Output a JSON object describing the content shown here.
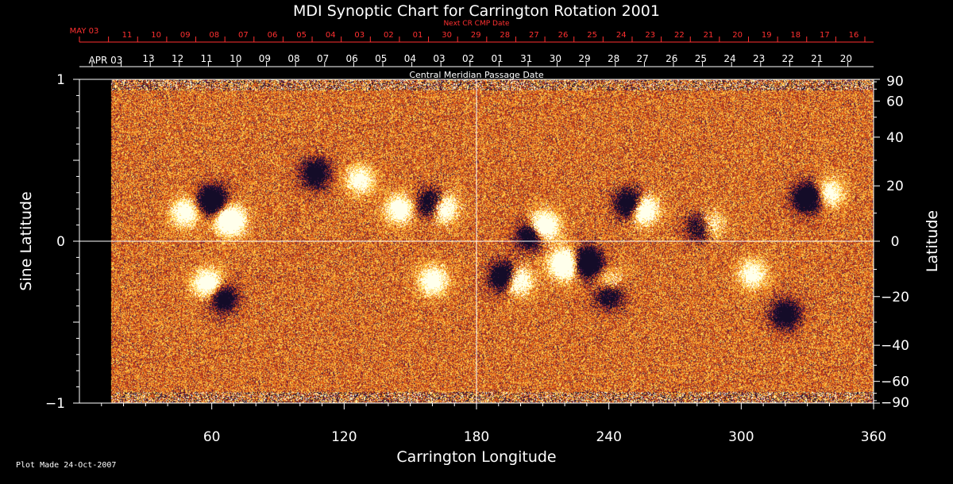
{
  "chart_data": {
    "type": "heatmap",
    "title": "MDI Synoptic Chart for Carrington Rotation 2001",
    "xlabel": "Carrington Longitude",
    "ylabel_left": "Sine Latitude",
    "ylabel_right": "Latitude",
    "xlim": [
      0,
      360
    ],
    "ylim": [
      -1,
      1
    ],
    "x_ticks": [
      60,
      120,
      180,
      240,
      300,
      360
    ],
    "y_ticks_left": [
      {
        "value": 1,
        "label": "1"
      },
      {
        "value": 0,
        "label": "0"
      },
      {
        "value": -1,
        "label": "−1"
      }
    ],
    "y_ticks_right_deg": [
      90,
      60,
      40,
      20,
      0,
      -20,
      -40,
      -60,
      -90
    ],
    "y_tick_labels_right": [
      "90",
      "60",
      "40",
      "20",
      "0",
      "−20",
      "−40",
      "−60",
      "−90"
    ],
    "top_axis_next": {
      "label": "Next CR CMP Date",
      "start_label": "MAY 03",
      "labels": [
        "11",
        "10",
        "09",
        "08",
        "07",
        "06",
        "05",
        "04",
        "03",
        "02",
        "01",
        "30",
        "29",
        "28",
        "27",
        "26",
        "25",
        "24",
        "23",
        "22",
        "21",
        "20",
        "19",
        "18",
        "17",
        "16"
      ]
    },
    "top_axis_cmp": {
      "label": "Central Meridian Passage Date",
      "start_label": "APR 03",
      "labels": [
        "13",
        "12",
        "11",
        "10",
        "09",
        "08",
        "07",
        "06",
        "05",
        "04",
        "03",
        "02",
        "01",
        "31",
        "30",
        "29",
        "28",
        "27",
        "26",
        "25",
        "24",
        "23",
        "22",
        "21",
        "20"
      ]
    },
    "footer": "Plot Made 24-Oct-2007",
    "crosshair": {
      "longitude": 180,
      "sine_latitude": 0
    },
    "colors": {
      "background": "#000000",
      "field_base": "#d9531c",
      "positive": "#ffffff",
      "negative": "#1a1030",
      "axes": "#ffffff",
      "top_axis_text": "#ff3030"
    },
    "active_regions": [
      {
        "lon": 68,
        "sinlat": 0.13,
        "polarity": "positive",
        "strength": 1.0
      },
      {
        "lon": 60,
        "sinlat": 0.25,
        "polarity": "negative",
        "strength": 0.9
      },
      {
        "lon": 48,
        "sinlat": 0.18,
        "polarity": "positive",
        "strength": 0.6
      },
      {
        "lon": 107,
        "sinlat": 0.42,
        "polarity": "negative",
        "strength": 0.6
      },
      {
        "lon": 127,
        "sinlat": 0.38,
        "polarity": "positive",
        "strength": 0.5
      },
      {
        "lon": 160,
        "sinlat": 0.23,
        "polarity": "negative",
        "strength": 1.0
      },
      {
        "lon": 164,
        "sinlat": 0.21,
        "polarity": "positive",
        "strength": 1.0
      },
      {
        "lon": 145,
        "sinlat": 0.2,
        "polarity": "positive",
        "strength": 0.6
      },
      {
        "lon": 210,
        "sinlat": 0.09,
        "polarity": "positive",
        "strength": 1.0
      },
      {
        "lon": 205,
        "sinlat": 0.04,
        "polarity": "negative",
        "strength": 0.8
      },
      {
        "lon": 220,
        "sinlat": -0.14,
        "polarity": "positive",
        "strength": 1.0
      },
      {
        "lon": 230,
        "sinlat": -0.13,
        "polarity": "negative",
        "strength": 1.0
      },
      {
        "lon": 240,
        "sinlat": -0.26,
        "polarity": "positive",
        "strength": 0.5
      },
      {
        "lon": 250,
        "sinlat": 0.23,
        "polarity": "negative",
        "strength": 1.0
      },
      {
        "lon": 255,
        "sinlat": 0.2,
        "polarity": "positive",
        "strength": 1.0
      },
      {
        "lon": 282,
        "sinlat": 0.09,
        "polarity": "negative",
        "strength": 0.8
      },
      {
        "lon": 285,
        "sinlat": 0.1,
        "polarity": "positive",
        "strength": 0.7
      },
      {
        "lon": 330,
        "sinlat": 0.27,
        "polarity": "negative",
        "strength": 0.8
      },
      {
        "lon": 340,
        "sinlat": 0.3,
        "polarity": "positive",
        "strength": 0.5
      },
      {
        "lon": 193,
        "sinlat": -0.22,
        "polarity": "negative",
        "strength": 1.0
      },
      {
        "lon": 198,
        "sinlat": -0.24,
        "polarity": "positive",
        "strength": 0.9
      },
      {
        "lon": 58,
        "sinlat": -0.26,
        "polarity": "positive",
        "strength": 0.7
      },
      {
        "lon": 65,
        "sinlat": -0.35,
        "polarity": "negative",
        "strength": 0.6
      },
      {
        "lon": 160,
        "sinlat": -0.24,
        "polarity": "positive",
        "strength": 0.6
      },
      {
        "lon": 240,
        "sinlat": -0.32,
        "polarity": "negative",
        "strength": 0.7
      },
      {
        "lon": 305,
        "sinlat": -0.2,
        "polarity": "positive",
        "strength": 0.5
      },
      {
        "lon": 320,
        "sinlat": -0.45,
        "polarity": "negative",
        "strength": 0.6
      }
    ]
  }
}
